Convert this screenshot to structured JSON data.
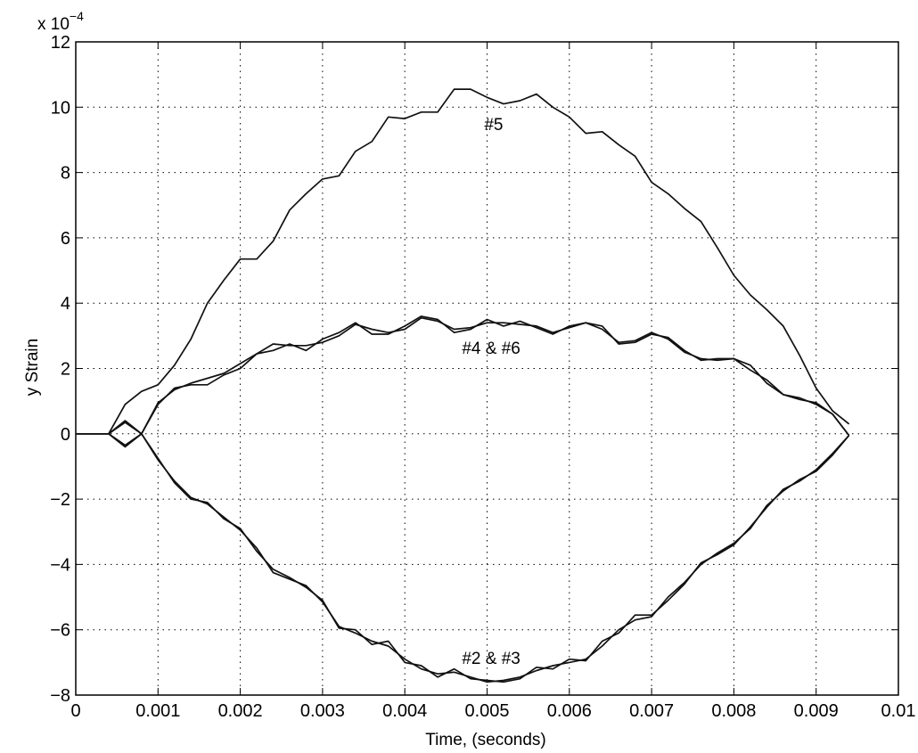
{
  "chart_data": {
    "type": "line",
    "xlabel": "Time, (seconds)",
    "ylabel": "y Strain",
    "y_multiplier": "x 10",
    "y_multiplier_exponent": "−4",
    "xlim": [
      0,
      0.01
    ],
    "ylim": [
      -8,
      12
    ],
    "x_ticks": [
      0,
      0.001,
      0.002,
      0.003,
      0.004,
      0.005,
      0.006,
      0.007,
      0.008,
      0.009,
      0.01
    ],
    "x_tick_labels": [
      "0",
      "0.001",
      "0.002",
      "0.003",
      "0.004",
      "0.005",
      "0.006",
      "0.007",
      "0.008",
      "0.009",
      "0.01"
    ],
    "y_ticks": [
      -8,
      -6,
      -4,
      -2,
      0,
      2,
      4,
      6,
      8,
      10,
      12
    ],
    "y_tick_labels": [
      "−8",
      "−6",
      "−4",
      "−2",
      "0",
      "2",
      "4",
      "6",
      "8",
      "10",
      "12"
    ],
    "grid": true,
    "annotations": [
      {
        "text": "#5",
        "x": 0.00508,
        "y": 9.3
      },
      {
        "text": "#4 & #6",
        "x": 0.00505,
        "y": 2.45
      },
      {
        "text": "#2 & #3",
        "x": 0.00505,
        "y": -7.05
      }
    ],
    "series": [
      {
        "x": [
          0,
          0.0004,
          0.0006,
          0.0008,
          0.001,
          0.0012,
          0.0014,
          0.0016,
          0.0018,
          0.002,
          0.0022,
          0.0024,
          0.0026,
          0.0028,
          0.003,
          0.0032,
          0.0034,
          0.0036,
          0.0038,
          0.004,
          0.0042,
          0.0044,
          0.0046,
          0.0048,
          0.005,
          0.0052,
          0.0054,
          0.0056,
          0.0058,
          0.006,
          0.0062,
          0.0064,
          0.0066,
          0.0068,
          0.007,
          0.0072,
          0.0074,
          0.0076,
          0.0078,
          0.008,
          0.0082,
          0.0084,
          0.0086,
          0.0088,
          0.009,
          0.0092,
          0.0094
        ],
        "values": [
          0,
          0,
          0.9,
          1.3,
          1.5,
          2.1,
          2.9,
          4.0,
          4.7,
          5.35,
          5.35,
          5.9,
          6.85,
          7.35,
          7.8,
          7.9,
          8.65,
          8.95,
          9.7,
          9.65,
          9.85,
          9.85,
          10.55,
          10.55,
          10.3,
          10.1,
          10.2,
          10.4,
          10.0,
          9.7,
          9.2,
          9.25,
          8.85,
          8.5,
          7.7,
          7.35,
          6.9,
          6.5,
          5.7,
          4.85,
          4.25,
          3.8,
          3.3,
          2.4,
          1.4,
          0.7,
          0.3
        ]
      },
      {
        "x": [
          0,
          0.0004,
          0.0006,
          0.0008,
          0.001,
          0.0012,
          0.0014,
          0.0016,
          0.0018,
          0.002,
          0.0022,
          0.0024,
          0.0026,
          0.0028,
          0.003,
          0.0032,
          0.0034,
          0.0036,
          0.0038,
          0.004,
          0.0042,
          0.0044,
          0.0046,
          0.0048,
          0.005,
          0.0052,
          0.0054,
          0.0056,
          0.0058,
          0.006,
          0.0062,
          0.0064,
          0.0066,
          0.0068,
          0.007,
          0.0072,
          0.0074,
          0.0076,
          0.0078,
          0.008,
          0.0082,
          0.0084,
          0.0086,
          0.0088,
          0.009,
          0.0092,
          0.0094
        ],
        "values": [
          0,
          0,
          -0.4,
          0,
          0.9,
          1.4,
          1.5,
          1.5,
          1.8,
          2.0,
          2.45,
          2.55,
          2.75,
          2.55,
          2.9,
          3.1,
          3.4,
          3.05,
          3.05,
          3.3,
          3.6,
          3.5,
          3.1,
          3.2,
          3.5,
          3.3,
          3.45,
          3.25,
          3.05,
          3.3,
          3.4,
          3.3,
          2.75,
          2.8,
          3.05,
          2.95,
          2.55,
          2.25,
          2.3,
          2.3,
          2.1,
          1.55,
          1.2,
          1.1,
          0.9,
          0.6,
          -0.05
        ]
      },
      {
        "x": [
          0,
          0.0004,
          0.0006,
          0.0008,
          0.001,
          0.0012,
          0.0014,
          0.0016,
          0.0018,
          0.002,
          0.0022,
          0.0024,
          0.0026,
          0.0028,
          0.003,
          0.0032,
          0.0034,
          0.0036,
          0.0038,
          0.004,
          0.0042,
          0.0044,
          0.0046,
          0.0048,
          0.005,
          0.0052,
          0.0054,
          0.0056,
          0.0058,
          0.006,
          0.0062,
          0.0064,
          0.0066,
          0.0068,
          0.007,
          0.0072,
          0.0074,
          0.0076,
          0.0078,
          0.008,
          0.0082,
          0.0084,
          0.0086,
          0.0088,
          0.009,
          0.0092,
          0.0094
        ],
        "values": [
          0,
          0,
          0.35,
          0,
          0.95,
          1.35,
          1.55,
          1.7,
          1.85,
          2.15,
          2.45,
          2.75,
          2.7,
          2.7,
          2.8,
          3.0,
          3.35,
          3.2,
          3.1,
          3.2,
          3.55,
          3.45,
          3.2,
          3.25,
          3.4,
          3.4,
          3.35,
          3.3,
          3.1,
          3.25,
          3.4,
          3.2,
          2.8,
          2.85,
          3.1,
          2.9,
          2.5,
          2.3,
          2.25,
          2.3,
          1.95,
          1.65,
          1.2,
          1.05,
          0.95,
          0.6,
          -0.05
        ]
      },
      {
        "x": [
          0,
          0.0004,
          0.0006,
          0.0008,
          0.001,
          0.0012,
          0.0014,
          0.0016,
          0.0018,
          0.002,
          0.0022,
          0.0024,
          0.0026,
          0.0028,
          0.003,
          0.0032,
          0.0034,
          0.0036,
          0.0038,
          0.004,
          0.0042,
          0.0044,
          0.0046,
          0.0048,
          0.005,
          0.0052,
          0.0054,
          0.0056,
          0.0058,
          0.006,
          0.0062,
          0.0064,
          0.0066,
          0.0068,
          0.007,
          0.0072,
          0.0074,
          0.0076,
          0.0078,
          0.008,
          0.0082,
          0.0084,
          0.0086,
          0.0088,
          0.009,
          0.0092,
          0.0094
        ],
        "values": [
          0,
          0,
          0.4,
          0,
          -0.75,
          -1.5,
          -2.0,
          -2.1,
          -2.6,
          -2.9,
          -3.6,
          -4.15,
          -4.4,
          -4.7,
          -5.1,
          -5.95,
          -6.0,
          -6.45,
          -6.35,
          -7.0,
          -7.1,
          -7.45,
          -7.2,
          -7.5,
          -7.55,
          -7.6,
          -7.5,
          -7.15,
          -7.2,
          -6.9,
          -6.95,
          -6.35,
          -6.1,
          -5.55,
          -5.55,
          -5.1,
          -4.6,
          -3.95,
          -3.7,
          -3.4,
          -2.85,
          -2.25,
          -1.7,
          -1.45,
          -1.1,
          -0.6,
          -0.05
        ]
      },
      {
        "x": [
          0,
          0.0004,
          0.0006,
          0.0008,
          0.001,
          0.0012,
          0.0014,
          0.0016,
          0.0018,
          0.002,
          0.0022,
          0.0024,
          0.0026,
          0.0028,
          0.003,
          0.0032,
          0.0034,
          0.0036,
          0.0038,
          0.004,
          0.0042,
          0.0044,
          0.0046,
          0.0048,
          0.005,
          0.0052,
          0.0054,
          0.0056,
          0.0058,
          0.006,
          0.0062,
          0.0064,
          0.0066,
          0.0068,
          0.007,
          0.0072,
          0.0074,
          0.0076,
          0.0078,
          0.008,
          0.0082,
          0.0084,
          0.0086,
          0.0088,
          0.009,
          0.0092,
          0.0094
        ],
        "values": [
          0,
          0,
          -0.35,
          0,
          -0.8,
          -1.45,
          -1.95,
          -2.15,
          -2.55,
          -2.95,
          -3.5,
          -4.25,
          -4.45,
          -4.65,
          -5.15,
          -5.9,
          -6.1,
          -6.35,
          -6.5,
          -6.9,
          -7.2,
          -7.35,
          -7.3,
          -7.45,
          -7.6,
          -7.55,
          -7.45,
          -7.25,
          -7.1,
          -7.0,
          -6.9,
          -6.5,
          -6.0,
          -5.7,
          -5.6,
          -5.0,
          -4.55,
          -4.0,
          -3.65,
          -3.35,
          -2.9,
          -2.2,
          -1.75,
          -1.4,
          -1.15,
          -0.65,
          -0.05
        ]
      }
    ]
  }
}
